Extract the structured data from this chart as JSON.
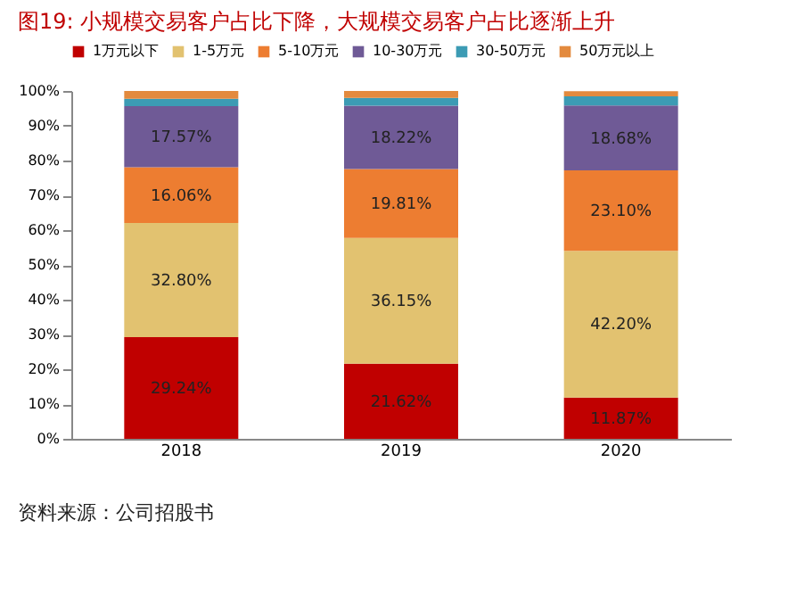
{
  "chart_data": {
    "type": "bar",
    "stacked": true,
    "title": "图19:  小规模交易客户占比下降，大规模交易客户占比逐渐上升",
    "categories": [
      "2018",
      "2019",
      "2020"
    ],
    "series": [
      {
        "name": "1万元以下",
        "color": "#c00000",
        "values": [
          29.24,
          21.62,
          11.87
        ],
        "value_labels": [
          "29.24%",
          "21.62%",
          "11.87%"
        ]
      },
      {
        "name": "1-5万元",
        "color": "#e2c270",
        "values": [
          32.8,
          36.15,
          42.2
        ],
        "value_labels": [
          "32.80%",
          "36.15%",
          "42.20%"
        ]
      },
      {
        "name": "5-10万元",
        "color": "#ed7d31",
        "values": [
          16.06,
          19.81,
          23.1
        ],
        "value_labels": [
          "16.06%",
          "19.81%",
          "23.10%"
        ]
      },
      {
        "name": "10-30万元",
        "color": "#6f5a96",
        "values": [
          17.57,
          18.22,
          18.68
        ],
        "value_labels": [
          "17.57%",
          "18.22%",
          "18.68%"
        ]
      },
      {
        "name": "30-50万元",
        "color": "#3c9bb4",
        "values": [
          2.1,
          2.2,
          2.6
        ]
      },
      {
        "name": "50万元以上",
        "color": "#e38a3e",
        "values": [
          2.2,
          2.0,
          1.5
        ]
      }
    ],
    "ylim": [
      0,
      100
    ],
    "yticks": [
      {
        "value": 0,
        "label": "0%"
      },
      {
        "value": 10,
        "label": "10%"
      },
      {
        "value": 20,
        "label": "20%"
      },
      {
        "value": 30,
        "label": "30%"
      },
      {
        "value": 40,
        "label": "40%"
      },
      {
        "value": 50,
        "label": "50%"
      },
      {
        "value": 60,
        "label": "60%"
      },
      {
        "value": 70,
        "label": "70%"
      },
      {
        "value": 80,
        "label": "80%"
      },
      {
        "value": 90,
        "label": "90%"
      },
      {
        "value": 100,
        "label": "100%"
      }
    ],
    "grid": false,
    "legend": "top",
    "annotations": [
      "资料来源：公司招股书"
    ]
  }
}
